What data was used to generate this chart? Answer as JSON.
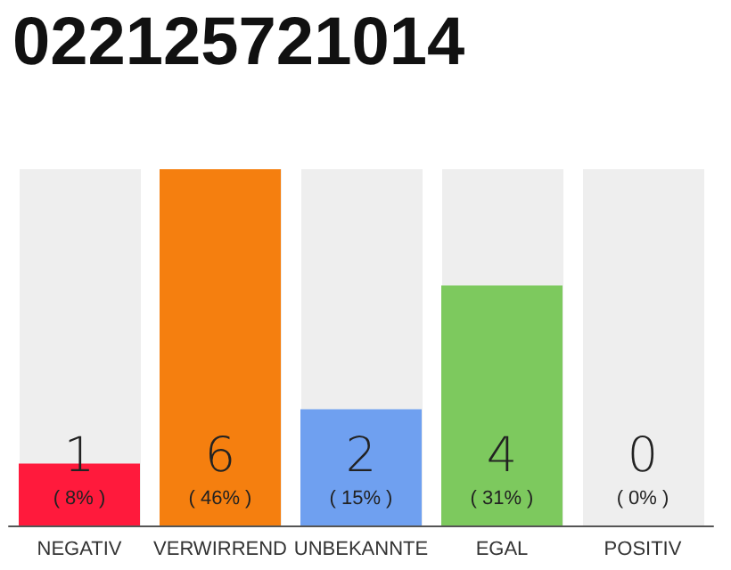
{
  "chart_data": {
    "type": "bar",
    "title": "022125721014",
    "categories": [
      "NEGATIV",
      "VERWIRREND",
      "UNBEKANNTE",
      "EGAL",
      "POSITIV"
    ],
    "values": [
      8,
      46,
      15,
      31,
      0
    ],
    "colors": [
      "#ff1a3c",
      "#f57f0f",
      "#6fa0f0",
      "#7dc95e",
      "#eeeeee"
    ],
    "value_labels": [
      "( 8% )",
      "( 46% )",
      "( 15% )",
      "( 31% )",
      "( 0% )"
    ],
    "annotations": [
      "1",
      "6",
      "2",
      "4",
      "0"
    ],
    "tick_labels": "x"
  }
}
